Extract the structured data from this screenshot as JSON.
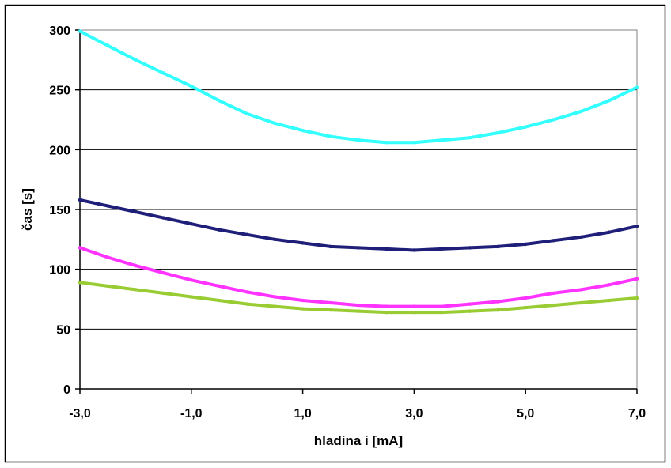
{
  "chart_data": {
    "type": "line",
    "xlabel": "hladina i [mA]",
    "ylabel": "čas [s]",
    "xlim": [
      -3,
      7
    ],
    "ylim": [
      0,
      300
    ],
    "x_ticks": [
      -3,
      -1,
      1,
      3,
      5,
      7
    ],
    "x_tick_labels": [
      "-3,0",
      "-1,0",
      "1,0",
      "3,0",
      "5,0",
      "7,0"
    ],
    "y_ticks": [
      0,
      50,
      100,
      150,
      200,
      250,
      300
    ],
    "y_tick_labels": [
      "0",
      "50",
      "100",
      "150",
      "200",
      "250",
      "300"
    ],
    "grid": "horizontal",
    "legend": "none",
    "x": [
      -3,
      -2.5,
      -2,
      -1.5,
      -1,
      -0.5,
      0,
      0.5,
      1,
      1.5,
      2,
      2.5,
      3,
      3.5,
      4,
      4.5,
      5,
      5.5,
      6,
      6.5,
      7
    ],
    "series": [
      {
        "color": "#33FFFF",
        "values": [
          299,
          287,
          275,
          264,
          253,
          241,
          230,
          222,
          216,
          211,
          208,
          206,
          206,
          208,
          210,
          214,
          219,
          225,
          232,
          241,
          252
        ]
      },
      {
        "color": "#1F1F7A",
        "values": [
          158,
          153,
          148,
          143,
          138,
          133,
          129,
          125,
          122,
          119,
          118,
          117,
          116,
          117,
          118,
          119,
          121,
          124,
          127,
          131,
          136
        ]
      },
      {
        "color": "#FF33FF",
        "values": [
          118,
          110,
          103,
          97,
          91,
          86,
          81,
          77,
          74,
          72,
          70,
          69,
          69,
          69,
          71,
          73,
          76,
          80,
          83,
          87,
          92
        ]
      },
      {
        "color": "#99CC33",
        "values": [
          89,
          86,
          83,
          80,
          77,
          74,
          71,
          69,
          67,
          66,
          65,
          64,
          64,
          64,
          65,
          66,
          68,
          70,
          72,
          74,
          76
        ]
      }
    ]
  },
  "colors": {
    "plot_border": "#808080",
    "grid": "#000000",
    "frame": "#000000"
  }
}
